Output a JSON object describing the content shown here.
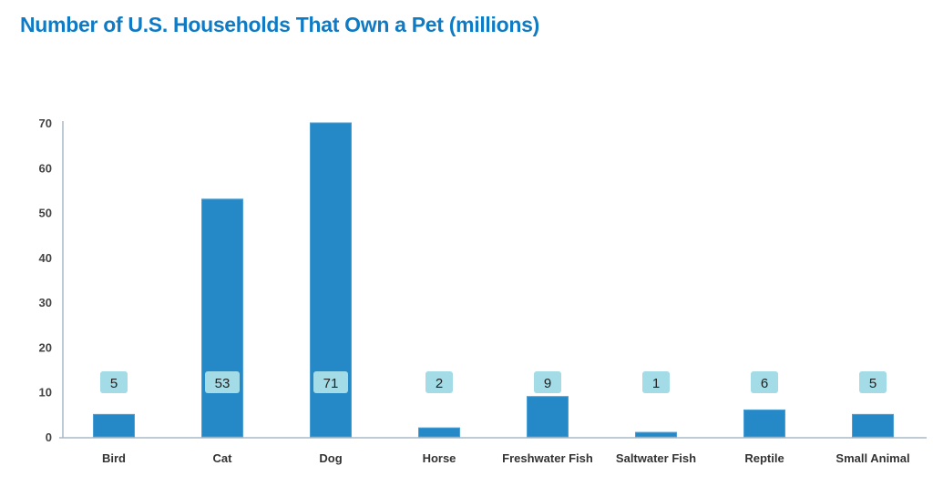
{
  "chart_data": {
    "type": "bar",
    "title": "Number of U.S. Households That Own a Pet (millions)",
    "xlabel": "",
    "ylabel": "",
    "categories": [
      "Bird",
      "Cat",
      "Dog",
      "Horse",
      "Freshwater Fish",
      "Saltwater Fish",
      "Reptile",
      "Small Animal"
    ],
    "values": [
      5,
      53,
      71,
      2,
      9,
      1,
      6,
      5
    ],
    "data_labels": [
      "5",
      "53",
      "71",
      "2",
      "9",
      "1",
      "6",
      "5"
    ],
    "ylim": [
      0,
      70
    ],
    "yticks": [
      0,
      10,
      20,
      30,
      40,
      50,
      60,
      70
    ],
    "grid": false,
    "legend": "none",
    "colors": {
      "bar": "#2589c8",
      "label_bg": "#a3dbe6",
      "title": "#0f7bc4",
      "axis": "#a9b8c6"
    }
  }
}
